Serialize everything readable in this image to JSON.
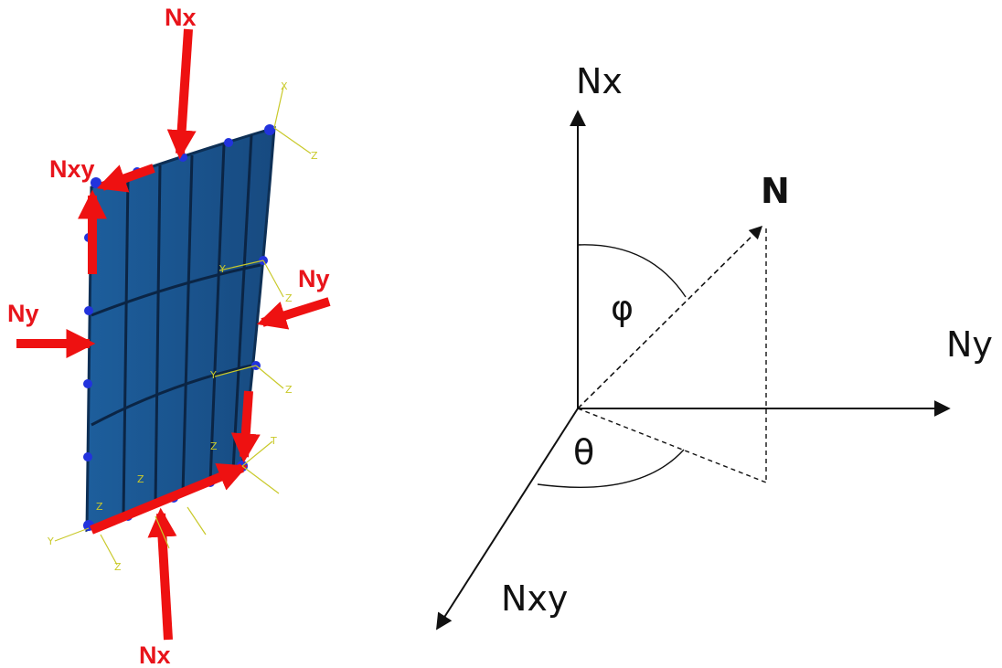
{
  "panel_model": {
    "labels": [
      "Nx",
      "Nxy",
      "Ny",
      "Ny",
      "Nx"
    ],
    "triad_labels": [
      "X",
      "Z",
      "Y",
      "Z",
      "Y",
      "Z",
      "Z",
      "Z",
      "Z",
      "Y",
      "Z",
      "T"
    ]
  },
  "force_diagram": {
    "axes": [
      "Nx",
      "Ny",
      "Nxy"
    ],
    "resultant": "N",
    "angles": [
      "φ",
      "θ"
    ]
  }
}
